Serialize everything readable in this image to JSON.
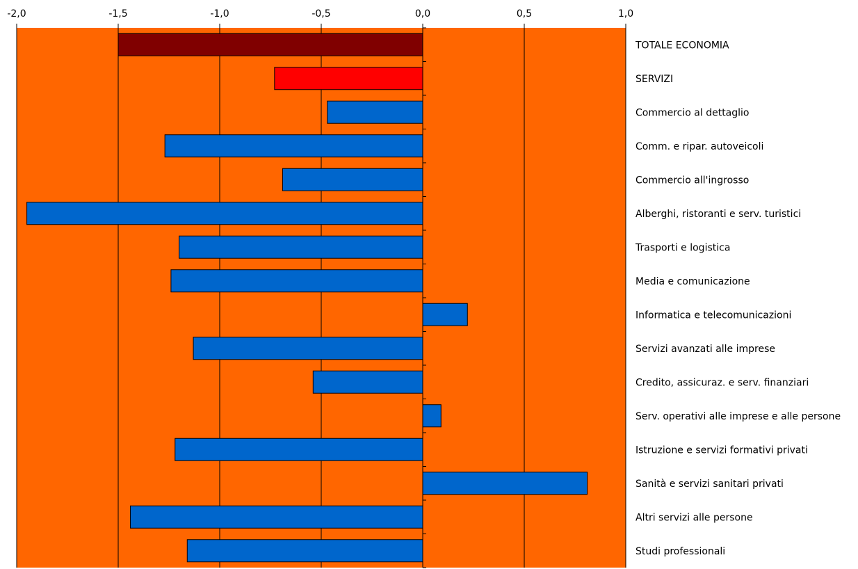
{
  "chart_data": {
    "type": "bar",
    "orientation": "horizontal",
    "categories": [
      "TOTALE ECONOMIA",
      "SERVIZI",
      "Commercio al dettaglio",
      "Comm. e ripar. autoveicoli",
      "Commercio all'ingrosso",
      "Alberghi, ristoranti e serv. turistici",
      "Trasporti e logistica",
      "Media e comunicazione",
      "Informatica e telecomunicazioni",
      "Servizi avanzati alle imprese",
      "Credito, assicuraz. e serv. finanziari",
      "Serv. operativi alle imprese e alle persone",
      "Istruzione e servizi formativi privati",
      "Sanità e servizi sanitari privati",
      "Altri servizi alle persone",
      "Studi professionali"
    ],
    "values": [
      -1.5,
      -0.73,
      -0.47,
      -1.27,
      -0.69,
      -1.95,
      -1.2,
      -1.24,
      0.22,
      -1.13,
      -0.54,
      0.09,
      -1.22,
      0.81,
      -1.44,
      -1.16
    ],
    "bar_colors": [
      "#800000",
      "#ff0000",
      "#0066cc",
      "#0066cc",
      "#0066cc",
      "#0066cc",
      "#0066cc",
      "#0066cc",
      "#0066cc",
      "#0066cc",
      "#0066cc",
      "#0066cc",
      "#0066cc",
      "#0066cc",
      "#0066cc",
      "#0066cc"
    ],
    "xlim": [
      -2.0,
      1.0
    ],
    "xticks": [
      -2.0,
      -1.5,
      -1.0,
      -0.5,
      0.0,
      0.5,
      1.0
    ],
    "xtick_labels": [
      "-2,0",
      "-1,5",
      "-1,0",
      "-0,5",
      "0,0",
      "0,5",
      "1,0"
    ],
    "x_axis_position": "top",
    "grid": "vertical",
    "legend": "none",
    "title": "",
    "xlabel": "",
    "ylabel": "",
    "plot_background": "#ff6600",
    "grid_color": "#000000"
  }
}
